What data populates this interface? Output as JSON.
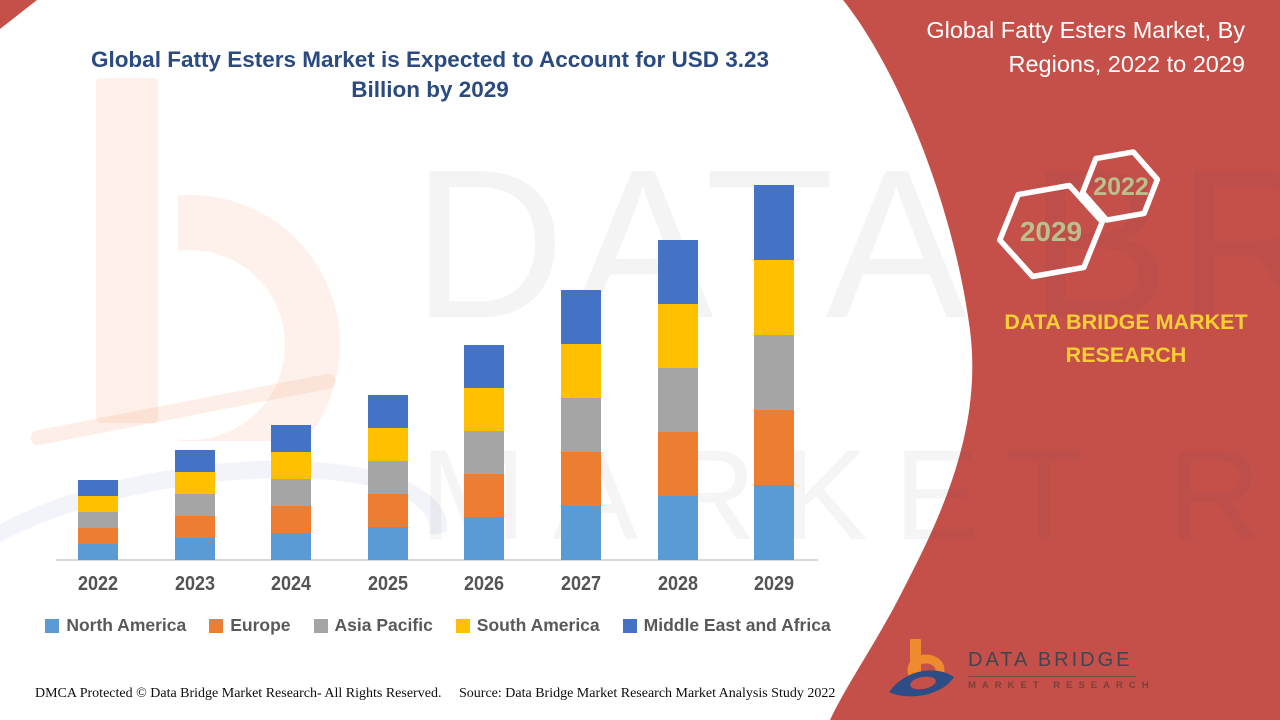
{
  "header": {
    "title_line1": "Global Fatty Esters Market is Expected to Account for USD 3.23",
    "title_line2": "Billion by 2029"
  },
  "chart_data": {
    "type": "bar",
    "stacked": true,
    "title": "Global Fatty Esters Market is Expected to Account for USD 3.23 Billion by 2029",
    "unit": "USD Billion",
    "categories": [
      "2022",
      "2023",
      "2024",
      "2025",
      "2026",
      "2027",
      "2028",
      "2029"
    ],
    "series": [
      {
        "name": "North America",
        "color": "#5B9BD5",
        "values": [
          0.14,
          0.187,
          0.234,
          0.28,
          0.37,
          0.462,
          0.553,
          0.646
        ]
      },
      {
        "name": "Europe",
        "color": "#ED7D31",
        "values": [
          0.14,
          0.187,
          0.234,
          0.28,
          0.37,
          0.462,
          0.553,
          0.646
        ]
      },
      {
        "name": "Asia Pacific",
        "color": "#A5A5A5",
        "values": [
          0.14,
          0.187,
          0.234,
          0.28,
          0.37,
          0.462,
          0.553,
          0.646
        ]
      },
      {
        "name": "South America",
        "color": "#FFC000",
        "values": [
          0.14,
          0.187,
          0.234,
          0.28,
          0.37,
          0.462,
          0.553,
          0.646
        ]
      },
      {
        "name": "Middle East and Africa",
        "color": "#4472C4",
        "values": [
          0.14,
          0.187,
          0.234,
          0.28,
          0.37,
          0.462,
          0.553,
          0.646
        ]
      }
    ],
    "totals": [
      0.7,
      0.94,
      1.17,
      1.4,
      1.85,
      2.31,
      2.77,
      3.23
    ],
    "ylim": [
      0,
      3.5
    ],
    "y_axis_visible": false,
    "grid": false,
    "legend_position": "bottom"
  },
  "side_panel": {
    "heading_line1": "Global Fatty Esters Market,  By",
    "heading_line2": "Regions, 2022 to 2029",
    "hexagon_back_label": "2029",
    "hexagon_front_label": "2022",
    "brand_text": "DATA BRIDGE MARKET RESEARCH"
  },
  "logo": {
    "title": "DATA BRIDGE",
    "subtitle": "MARKET RESEARCH"
  },
  "watermark": {
    "row1": "DATA BRIDGE",
    "row2": "MARKET RESEARCH"
  },
  "footer": {
    "dmca": "DMCA Protected © Data Bridge Market Research- All Rights Reserved.",
    "source": "Source: Data Bridge Market Research Market Analysis Study 2022"
  },
  "colors": {
    "accent_red": "#C55049",
    "brand_yellow": "#FACF35",
    "title_navy": "#2B4B80",
    "hexagon_label": "#B9C08C",
    "axis_label_gray": "#545454"
  }
}
